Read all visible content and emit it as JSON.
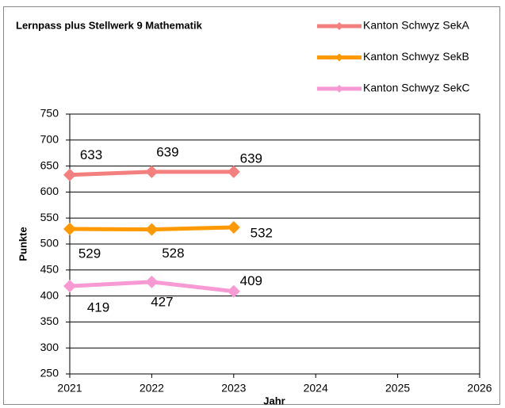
{
  "chart_data": {
    "type": "line",
    "title": "Lernpass plus Stellwerk 9 Mathematik",
    "x_label": "Jahr",
    "y_label": "Punkte",
    "x": [
      2021,
      2022,
      2023
    ],
    "series": [
      {
        "name": "Kanton Schwyz SekA",
        "color": "#f47f7f",
        "values": [
          633,
          639,
          639
        ]
      },
      {
        "name": "Kanton Schwyz SekB",
        "color": "#ff9900",
        "values": [
          529,
          528,
          532
        ]
      },
      {
        "name": "Kanton Schwyz SekC",
        "color": "#f79ad3",
        "values": [
          419,
          427,
          409
        ]
      }
    ],
    "xlim": [
      2021,
      2026
    ],
    "xticks": [
      2021,
      2022,
      2023,
      2024,
      2025,
      2026
    ],
    "ylim": [
      250,
      750
    ],
    "yticks": [
      250,
      300,
      350,
      400,
      450,
      500,
      550,
      600,
      650,
      700,
      750
    ],
    "grid": true,
    "legend": "upper right"
  }
}
